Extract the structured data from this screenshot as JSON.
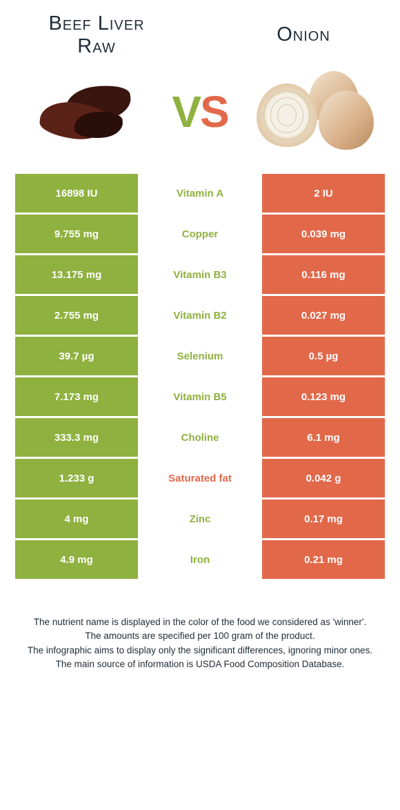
{
  "header": {
    "left_title": "Beef Liver Raw",
    "right_title": "Onion",
    "vs_text": "VS"
  },
  "colors": {
    "left": "#8fb13f",
    "right": "#e2684a",
    "text_dark": "#1e2b38",
    "liver_dark": "#3a1510",
    "liver_mid": "#5b2318",
    "onion_skin": "#d9b088",
    "onion_light": "#f0e4d0",
    "onion_flesh": "#f5f0e5",
    "green": "#6a8a3a"
  },
  "rows": [
    {
      "left": "16898 IU",
      "nutrient": "Vitamin A",
      "right": "2 IU",
      "winner": "left"
    },
    {
      "left": "9.755 mg",
      "nutrient": "Copper",
      "right": "0.039 mg",
      "winner": "left"
    },
    {
      "left": "13.175 mg",
      "nutrient": "Vitamin B3",
      "right": "0.116 mg",
      "winner": "left"
    },
    {
      "left": "2.755 mg",
      "nutrient": "Vitamin B2",
      "right": "0.027 mg",
      "winner": "left"
    },
    {
      "left": "39.7 µg",
      "nutrient": "Selenium",
      "right": "0.5 µg",
      "winner": "left"
    },
    {
      "left": "7.173 mg",
      "nutrient": "Vitamin B5",
      "right": "0.123 mg",
      "winner": "left"
    },
    {
      "left": "333.3 mg",
      "nutrient": "Choline",
      "right": "6.1 mg",
      "winner": "left"
    },
    {
      "left": "1.233 g",
      "nutrient": "Saturated fat",
      "right": "0.042 g",
      "winner": "right"
    },
    {
      "left": "4 mg",
      "nutrient": "Zinc",
      "right": "0.17 mg",
      "winner": "left"
    },
    {
      "left": "4.9 mg",
      "nutrient": "Iron",
      "right": "0.21 mg",
      "winner": "left"
    }
  ],
  "footer": {
    "line1": "The nutrient name is displayed in the color of the food we considered as 'winner'.",
    "line2": "The amounts are specified per 100 gram of the product.",
    "line3": "The infographic aims to display only the significant differences, ignoring minor ones.",
    "line4": "The main source of information is USDA Food Composition Database."
  }
}
